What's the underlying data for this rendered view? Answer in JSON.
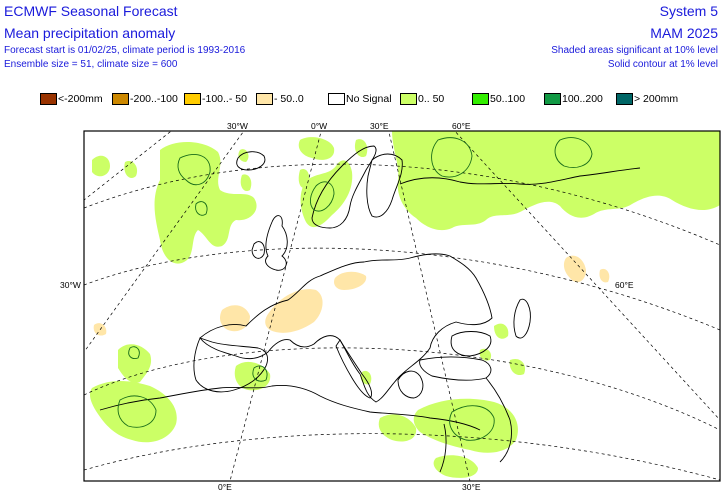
{
  "header": {
    "title_left": "ECMWF Seasonal Forecast",
    "subtitle_left": "Mean precipitation anomaly",
    "info_line1": "Forecast start is 01/02/25, climate period is 1993-2016",
    "info_line2": "Ensemble size = 51, climate size = 600",
    "system": "System 5",
    "season": "MAM 2025",
    "note1": "Shaded areas significant at 10% level",
    "note2": "Solid contour at 1% level"
  },
  "legend": [
    {
      "label": "<-200mm",
      "color": "#993300"
    },
    {
      "label": "-200..-100",
      "color": "#cc8800"
    },
    {
      "label": "-100..- 50",
      "color": "#ffcc00"
    },
    {
      "label": "- 50..0",
      "color": "#ffe6a8"
    },
    {
      "label": "No Signal",
      "color": "#ffffff"
    },
    {
      "label": "0.. 50",
      "color": "#ccff66"
    },
    {
      "label": "50..100",
      "color": "#33ee00"
    },
    {
      "label": "100..200",
      "color": "#119944"
    },
    {
      "label": "> 200mm",
      "color": "#006666"
    }
  ],
  "map_labels": {
    "top_30w": "30°W",
    "top_0": "0°W",
    "top_30e": "30°E",
    "top_60e": "60°E",
    "left_30w": "30°W",
    "right_60e": "60°E",
    "bottom_0": "0°E",
    "bottom_30e": "30°E"
  },
  "colors": {
    "text": "#1a1adb",
    "positive_anomaly": "#ccff66",
    "negative_anomaly": "#ffe6a8"
  }
}
